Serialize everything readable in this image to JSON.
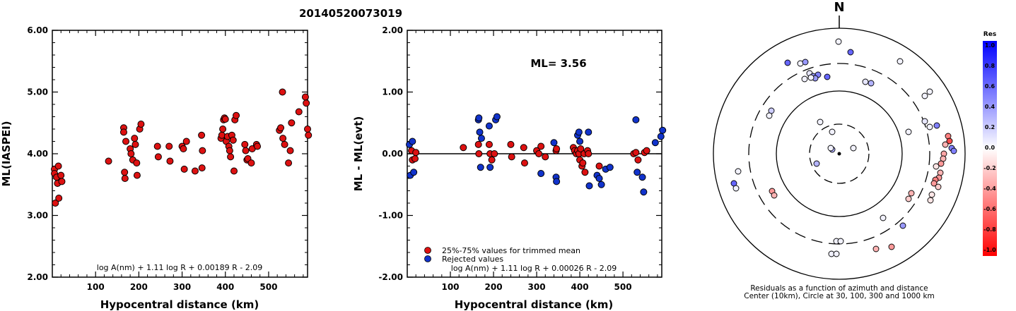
{
  "title": "20140520073019",
  "chart_data": [
    {
      "type": "scatter",
      "name": "ML(IASPEI) vs distance",
      "xlabel": "Hypocentral distance (km)",
      "ylabel": "ML(IASPEI)",
      "xlim": [
        0,
        590
      ],
      "ylim": [
        2.0,
        6.0
      ],
      "xticks": [
        "100",
        "200",
        "300",
        "400",
        "500"
      ],
      "yticks": [
        "2.00",
        "3.00",
        "4.00",
        "5.00",
        "6.00"
      ],
      "formula": "log A(nm) + 1.11 log R + 0.00189 R - 2.09",
      "series": [
        {
          "color": "#dd1111",
          "points": [
            [
              5,
              3.75
            ],
            [
              5,
              3.68
            ],
            [
              7,
              3.2
            ],
            [
              10,
              3.62
            ],
            [
              12,
              3.52
            ],
            [
              14,
              3.8
            ],
            [
              15,
              3.28
            ],
            [
              20,
              3.65
            ],
            [
              22,
              3.55
            ],
            [
              130,
              3.88
            ],
            [
              165,
              4.42
            ],
            [
              165,
              4.35
            ],
            [
              167,
              3.7
            ],
            [
              168,
              3.6
            ],
            [
              170,
              4.2
            ],
            [
              180,
              4.08
            ],
            [
              182,
              4.0
            ],
            [
              186,
              3.9
            ],
            [
              190,
              4.25
            ],
            [
              192,
              4.15
            ],
            [
              195,
              3.85
            ],
            [
              196,
              3.65
            ],
            [
              202,
              4.4
            ],
            [
              205,
              4.48
            ],
            [
              243,
              4.12
            ],
            [
              245,
              3.95
            ],
            [
              270,
              4.12
            ],
            [
              272,
              3.88
            ],
            [
              300,
              4.12
            ],
            [
              303,
              4.08
            ],
            [
              305,
              3.75
            ],
            [
              310,
              4.2
            ],
            [
              330,
              3.72
            ],
            [
              345,
              4.3
            ],
            [
              346,
              3.77
            ],
            [
              347,
              4.05
            ],
            [
              390,
              4.25
            ],
            [
              392,
              4.3
            ],
            [
              394,
              4.4
            ],
            [
              396,
              4.55
            ],
            [
              398,
              4.58
            ],
            [
              400,
              4.56
            ],
            [
              402,
              4.2
            ],
            [
              405,
              4.28
            ],
            [
              408,
              4.12
            ],
            [
              410,
              4.05
            ],
            [
              412,
              3.95
            ],
            [
              415,
              4.3
            ],
            [
              418,
              4.22
            ],
            [
              420,
              3.72
            ],
            [
              422,
              4.55
            ],
            [
              425,
              4.62
            ],
            [
              445,
              4.15
            ],
            [
              447,
              4.05
            ],
            [
              450,
              3.9
            ],
            [
              452,
              3.92
            ],
            [
              460,
              3.85
            ],
            [
              462,
              4.08
            ],
            [
              472,
              4.15
            ],
            [
              474,
              4.12
            ],
            [
              525,
              4.38
            ],
            [
              528,
              4.42
            ],
            [
              532,
              5.0
            ],
            [
              533,
              4.25
            ],
            [
              537,
              4.15
            ],
            [
              546,
              3.85
            ],
            [
              550,
              4.05
            ],
            [
              553,
              4.5
            ],
            [
              570,
              4.68
            ],
            [
              585,
              4.92
            ],
            [
              587,
              4.82
            ],
            [
              590,
              4.4
            ],
            [
              592,
              4.3
            ]
          ]
        }
      ]
    },
    {
      "type": "scatter",
      "name": "ML residuals vs distance",
      "xlabel": "Hypocentral distance (km)",
      "ylabel": "ML - ML(evt)",
      "xlim": [
        0,
        590
      ],
      "ylim": [
        -2.0,
        2.0
      ],
      "xticks": [
        "100",
        "200",
        "300",
        "400",
        "500"
      ],
      "yticks": [
        "-2.00",
        "-1.00",
        "0.00",
        "1.00",
        "2.00"
      ],
      "annotation": "ML= 3.56",
      "formula": "log A(nm) + 1.11 log R + 0.00026 R - 2.09",
      "legend": [
        {
          "label": "25%-75% values for trimmed mean",
          "color": "#dd1111"
        },
        {
          "label": "Rejected values",
          "color": "#1133cc"
        }
      ],
      "series": [
        {
          "label": "25%-75% values for trimmed mean",
          "color": "#dd1111",
          "points": [
            [
              10,
              0.05
            ],
            [
              12,
              -0.1
            ],
            [
              18,
              -0.08
            ],
            [
              20,
              0.02
            ],
            [
              130,
              0.1
            ],
            [
              165,
              0.15
            ],
            [
              166,
              0.0
            ],
            [
              190,
              0.15
            ],
            [
              192,
              0.0
            ],
            [
              196,
              -0.1
            ],
            [
              202,
              0.0
            ],
            [
              240,
              0.15
            ],
            [
              242,
              -0.05
            ],
            [
              270,
              0.1
            ],
            [
              272,
              -0.15
            ],
            [
              300,
              0.05
            ],
            [
              305,
              0.0
            ],
            [
              310,
              0.12
            ],
            [
              320,
              -0.05
            ],
            [
              345,
              0.05
            ],
            [
              346,
              0.08
            ],
            [
              385,
              0.1
            ],
            [
              388,
              0.05
            ],
            [
              392,
              0.0
            ],
            [
              395,
              0.05
            ],
            [
              398,
              0.0
            ],
            [
              400,
              -0.1
            ],
            [
              402,
              0.08
            ],
            [
              405,
              -0.2
            ],
            [
              407,
              -0.15
            ],
            [
              410,
              0.0
            ],
            [
              412,
              -0.3
            ],
            [
              418,
              0.05
            ],
            [
              420,
              0.0
            ],
            [
              445,
              -0.2
            ],
            [
              525,
              0.0
            ],
            [
              530,
              0.02
            ],
            [
              535,
              -0.1
            ],
            [
              550,
              0.02
            ],
            [
              555,
              0.05
            ]
          ]
        },
        {
          "label": "Rejected values",
          "color": "#1133cc",
          "points": [
            [
              5,
              0.15
            ],
            [
              7,
              -0.35
            ],
            [
              12,
              0.2
            ],
            [
              15,
              -0.3
            ],
            [
              165,
              0.55
            ],
            [
              166,
              0.58
            ],
            [
              168,
              0.35
            ],
            [
              170,
              -0.22
            ],
            [
              172,
              0.25
            ],
            [
              190,
              0.45
            ],
            [
              192,
              -0.22
            ],
            [
              205,
              0.55
            ],
            [
              208,
              0.6
            ],
            [
              310,
              -0.32
            ],
            [
              340,
              0.18
            ],
            [
              345,
              -0.38
            ],
            [
              346,
              -0.45
            ],
            [
              395,
              0.3
            ],
            [
              398,
              0.35
            ],
            [
              400,
              0.2
            ],
            [
              420,
              0.35
            ],
            [
              422,
              -0.52
            ],
            [
              440,
              -0.35
            ],
            [
              445,
              -0.4
            ],
            [
              450,
              -0.5
            ],
            [
              460,
              -0.25
            ],
            [
              470,
              -0.22
            ],
            [
              530,
              0.55
            ],
            [
              533,
              -0.3
            ],
            [
              545,
              -0.38
            ],
            [
              548,
              -0.62
            ],
            [
              575,
              0.18
            ],
            [
              588,
              0.28
            ],
            [
              592,
              0.38
            ]
          ]
        }
      ]
    },
    {
      "type": "polar-scatter",
      "name": "Residuals map",
      "north_label": "N",
      "caption_line1": "Residuals as a function of azimuth and distance",
      "caption_line2": "Center (10km), Circle at 30, 100, 300 and 1000 km",
      "colorbar": {
        "title": "Res",
        "ticks": [
          "1.0",
          "0.8",
          "0.6",
          "0.4",
          "0.2",
          "0.0",
          "-0.2",
          "-0.4",
          "-0.6",
          "-0.8",
          "-1.0"
        ],
        "max_color": "#0000ff",
        "mid_color": "#ffffff",
        "min_color": "#ff0000"
      }
    }
  ]
}
